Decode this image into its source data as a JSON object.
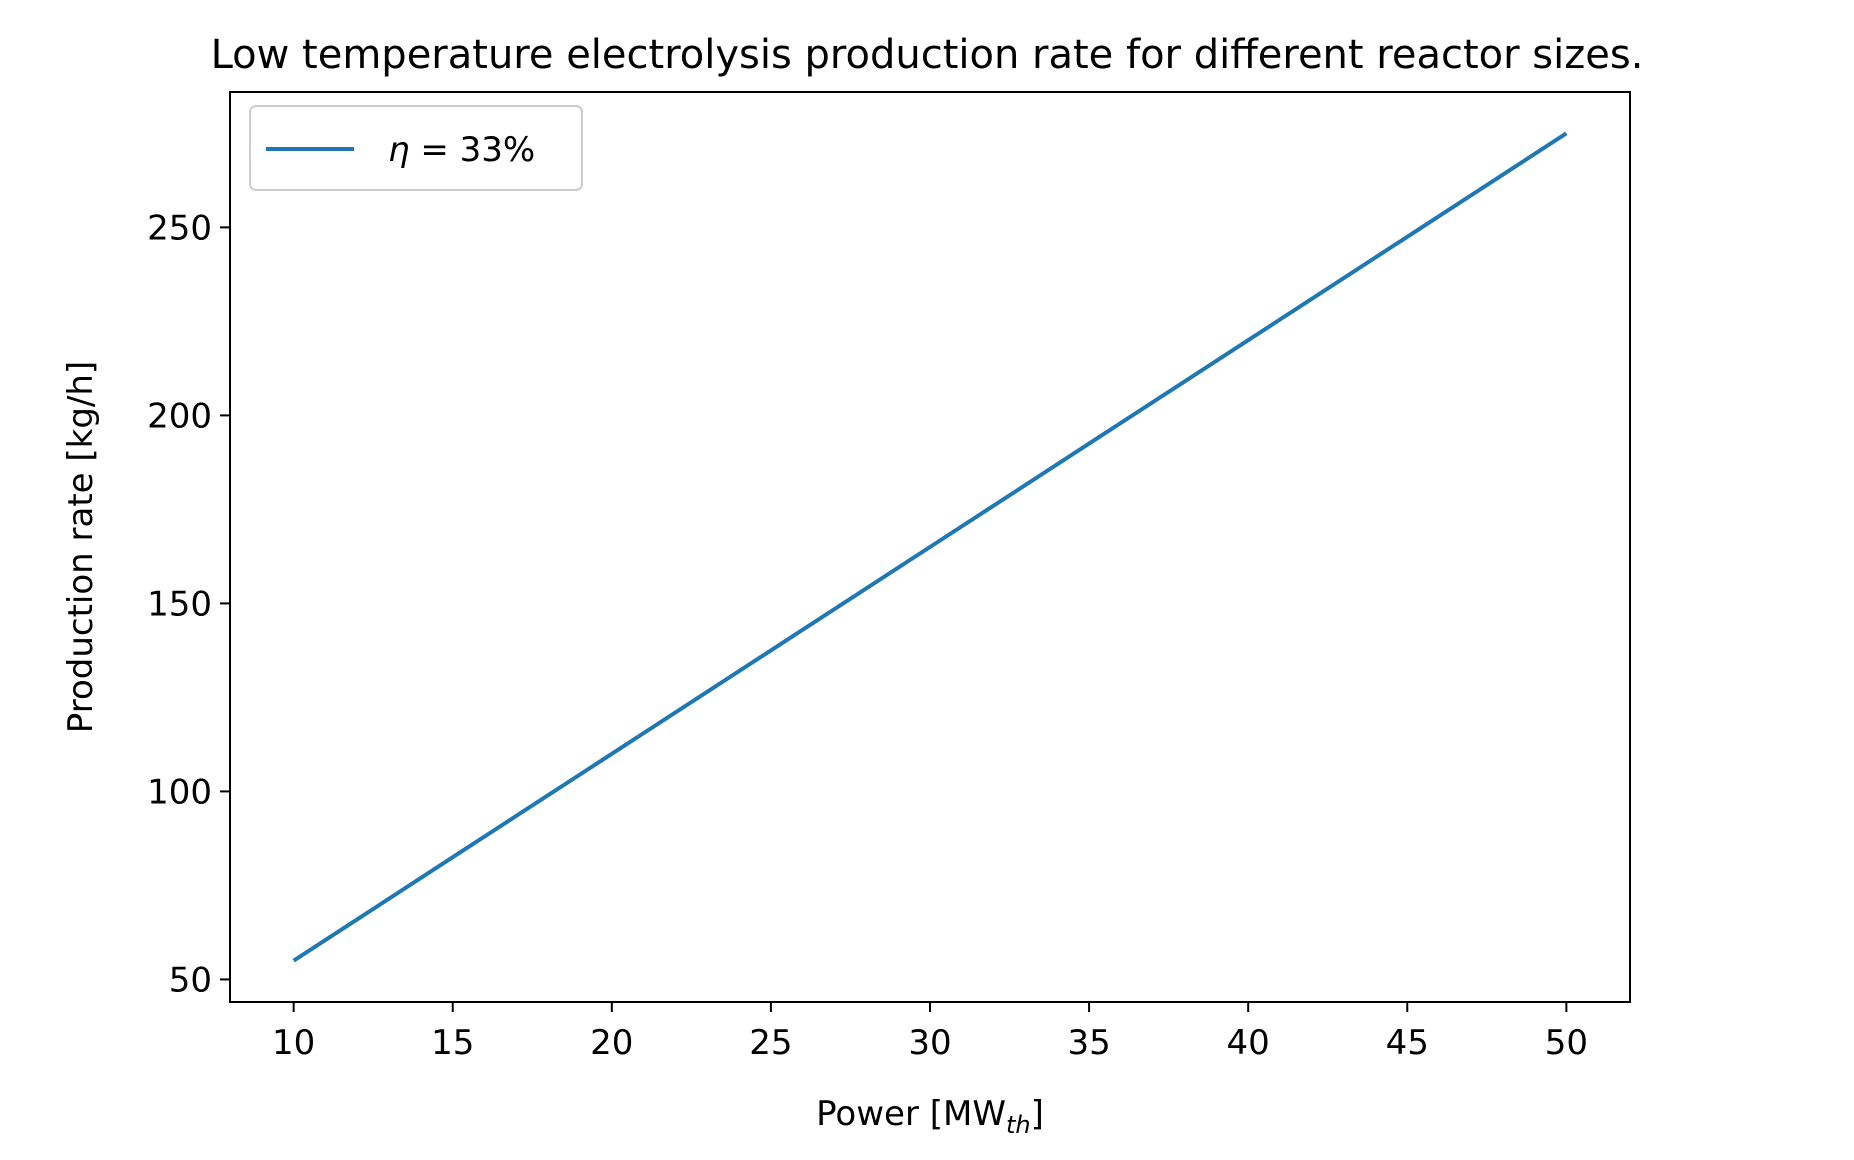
{
  "chart_data": {
    "type": "line",
    "title": "Low temperature electrolysis production rate for different reactor sizes.",
    "xlabel": "Power [MW",
    "xlabel_sub": "th",
    "xlabel_end": "]",
    "ylabel": "Production rate [kg/h]",
    "xlim": [
      8,
      52
    ],
    "ylim": [
      44,
      286
    ],
    "x_ticks": [
      10,
      15,
      20,
      25,
      30,
      35,
      40,
      45,
      50
    ],
    "y_ticks": [
      50,
      100,
      150,
      200,
      250
    ],
    "grid": false,
    "legend_position": "top-left",
    "series": [
      {
        "name_symbol": "η",
        "name_rest": " = 33%",
        "color": "#1f77b4",
        "x": [
          10,
          15,
          20,
          25,
          30,
          35,
          40,
          45,
          50
        ],
        "y": [
          55,
          82.5,
          110,
          137.5,
          165,
          192.5,
          220,
          247.5,
          275
        ]
      }
    ]
  }
}
